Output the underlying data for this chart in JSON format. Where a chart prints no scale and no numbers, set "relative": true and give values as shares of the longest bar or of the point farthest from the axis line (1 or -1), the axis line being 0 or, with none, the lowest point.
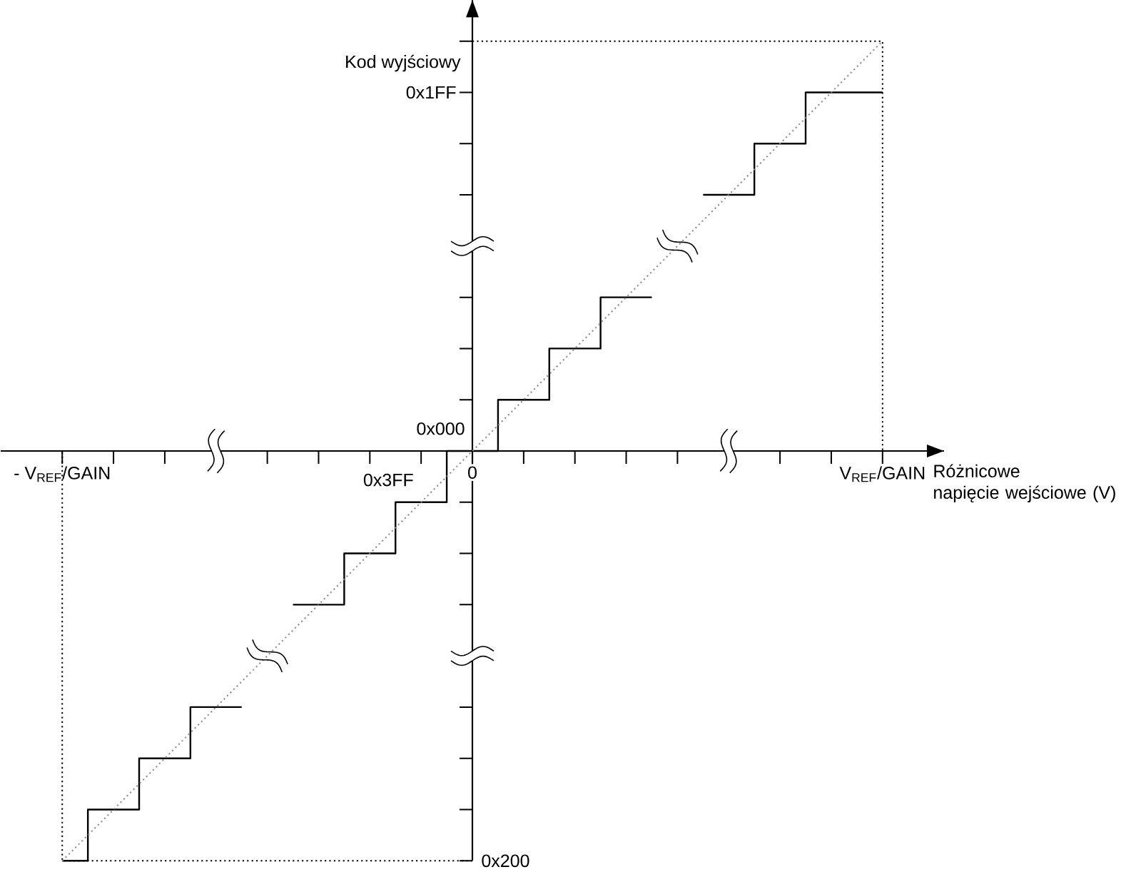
{
  "chart_data": {
    "type": "step",
    "relative": true,
    "xlabel": "Różnicowe napięcie wejściowe (V)",
    "ylabel": "Kod wyjściowy",
    "categories": [
      "- V$_{REF}$/GAIN",
      null,
      null,
      null,
      null,
      null,
      null,
      null,
      "0",
      null,
      null,
      null,
      null,
      null,
      null,
      null,
      "V$_{REF}$/GAIN"
    ],
    "series": [
      {
        "color": "#000000",
        "values": [
          -1,
          -0.875,
          -0.75,
          -0.625,
          null,
          -0.375,
          -0.25,
          -0.125,
          0,
          0.125,
          0.25,
          0.375,
          null,
          0.625,
          0.75,
          0.875,
          0.875
        ]
      },
      {
        "type": "line",
        "color": "#8c8c8c",
        "line_style": "dotted",
        "values": [
          -1,
          -0.875,
          -0.75,
          -0.625,
          -0.5,
          -0.375,
          -0.25,
          -0.125,
          0,
          0.125,
          0.25,
          0.375,
          0.5,
          0.625,
          0.75,
          0.875,
          1
        ]
      }
    ],
    "ref_lines": [
      {
        "axis": "y",
        "value": 1,
        "color": "#000000",
        "line_style": "dotted"
      },
      {
        "axis": "y",
        "value": -1,
        "color": "#000000",
        "line_style": "dotted"
      }
    ],
    "annotations": [
      "0x1FF",
      "0x000",
      "0x3FF",
      "0x200"
    ]
  }
}
